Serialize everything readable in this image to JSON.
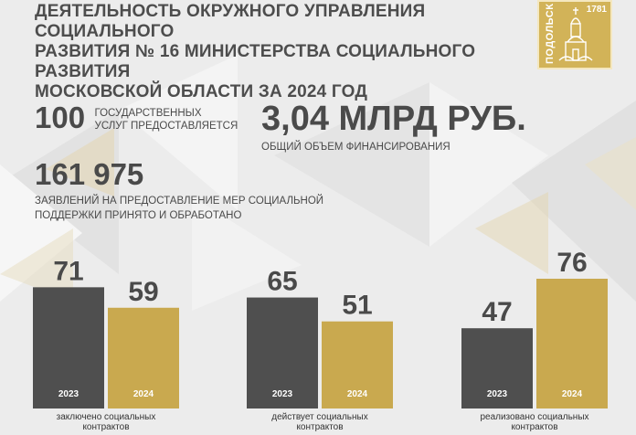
{
  "title": "ДЕЯТЕЛЬНОСТЬ ОКРУЖНОГО УПРАВЛЕНИЯ СОЦИАЛЬНОГО\nРАЗВИТИЯ № 16 МИНИСТЕРСТВА СОЦИАЛЬНОГО РАЗВИТИЯ\nМОСКОВСКОЙ ОБЛАСТИ ЗА 2024 ГОД",
  "logo": {
    "city": "ПОДОЛЬСК",
    "year": "1781",
    "icon": "church-emblem-icon"
  },
  "stats": {
    "services": {
      "value": "100",
      "caption": "ГОСУДАРСТВЕННЫХ\nУСЛУГ ПРЕДОСТАВЛЯЕТСЯ"
    },
    "funding": {
      "value": "3,04 МЛРД РУБ.",
      "caption": "ОБЩИЙ ОБЪЕМ ФИНАНСИРОВАНИЯ"
    },
    "applications": {
      "value": "161 975",
      "caption": "ЗАЯВЛЕНИЙ НА ПРЕДОСТАВЛЕНИЕ МЕР СОЦИАЛЬНОЙ\nПОДДЕРЖКИ ПРИНЯТО И ОБРАБОТАНО"
    }
  },
  "colors": {
    "dark_bar": "#4f4f4f",
    "gold_bar": "#c9a94f",
    "text": "#4a4a4a"
  },
  "chart_data": {
    "type": "bar",
    "categories": [
      "заключено социальных\nконтрактов",
      "действует социальных\nконтрактов",
      "реализовано социальных\nконтрактов"
    ],
    "series": [
      {
        "name": "2023",
        "values": [
          71,
          65,
          47
        ]
      },
      {
        "name": "2024",
        "values": [
          59,
          51,
          76
        ]
      }
    ],
    "ylim": [
      0,
      76
    ]
  }
}
